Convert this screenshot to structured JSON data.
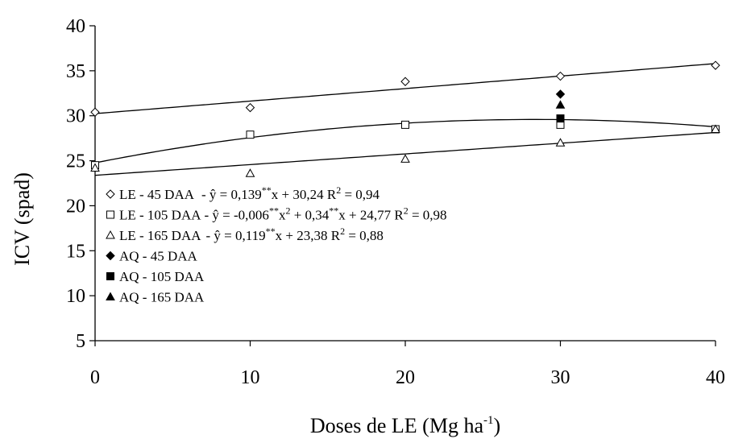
{
  "chart_data": {
    "type": "scatter",
    "title": "",
    "xlabel": "Doses de LE (Mg ha",
    "xlabel_sup": "-1",
    "xlabel_suffix": ")",
    "ylabel": "ICV (spad)",
    "xlim": [
      0,
      40
    ],
    "ylim": [
      5,
      40
    ],
    "xticks": [
      "0",
      "10",
      "20",
      "30",
      "40"
    ],
    "yticks": [
      "5",
      "10",
      "15",
      "20",
      "25",
      "30",
      "35",
      "40"
    ],
    "grid": false,
    "legend_position": "bottom-left",
    "series": [
      {
        "name": "LE - 45 DAA",
        "equation": "- ŷ = 0,139**x + 30,24 R2 = 0,94",
        "marker": "diamond-open",
        "x": [
          0,
          10,
          20,
          30,
          40
        ],
        "y": [
          30.4,
          30.9,
          33.8,
          34.4,
          35.6
        ],
        "fit": {
          "kind": "linear",
          "a": 0.139,
          "b": 30.24
        }
      },
      {
        "name": "LE - 105 DAA",
        "equation": "- ŷ = -0,006**x2 + 0,34**x + 24,77 R2 = 0,98",
        "marker": "square-open",
        "x": [
          0,
          10,
          20,
          30,
          40
        ],
        "y": [
          24.5,
          27.9,
          29.0,
          29.0,
          28.5
        ],
        "fit": {
          "kind": "quadratic",
          "a2": -0.006,
          "a1": 0.34,
          "b": 24.77
        }
      },
      {
        "name": "LE - 165 DAA",
        "equation": "- ŷ = 0,119**x + 23,38 R2 = 0,88",
        "marker": "triangle-open",
        "x": [
          0,
          10,
          20,
          30,
          40
        ],
        "y": [
          24.2,
          23.6,
          25.2,
          27.0,
          28.5
        ],
        "fit": {
          "kind": "linear",
          "a": 0.119,
          "b": 23.38
        }
      },
      {
        "name": "AQ - 45 DAA",
        "equation": "",
        "marker": "diamond-filled",
        "x": [
          30
        ],
        "y": [
          32.4
        ]
      },
      {
        "name": "AQ - 105 DAA",
        "equation": "",
        "marker": "square-filled",
        "x": [
          30
        ],
        "y": [
          29.7
        ]
      },
      {
        "name": "AQ - 165 DAA",
        "equation": "",
        "marker": "triangle-filled",
        "x": [
          30
        ],
        "y": [
          31.2
        ]
      }
    ],
    "legend_equations": [
      {
        "prefix": "- ŷ = 0,139",
        "sup1": "**",
        "mid": "x + 30,24 R",
        "sup2": "2",
        "end": " = 0,94"
      },
      {
        "prefix": "- ŷ = -0,006",
        "sup1": "**",
        "mid": "x",
        "sup2": "2",
        "mid2": " + 0,34",
        "sup3": "**",
        "mid3": "x + 24,77 R",
        "sup4": "2",
        "end": " = 0,98"
      },
      {
        "prefix": "- ŷ = 0,119",
        "sup1": "**",
        "mid": "x + 23,38 R",
        "sup2": "2",
        "end": " = 0,88"
      }
    ],
    "colors": {
      "line": "#000000",
      "marker": "#000000",
      "background": "#ffffff"
    }
  }
}
